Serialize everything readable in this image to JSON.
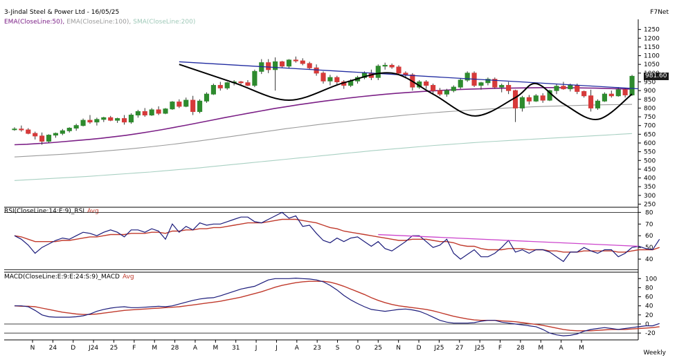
{
  "header": {
    "title": "3-Jindal Steel & Power Ltd - 16/05/25",
    "brand": "F7Net",
    "frequency": "Weekly",
    "overlays": [
      {
        "label": "EMA(CloseLine:50),",
        "color": "#7b1f86"
      },
      {
        "label": "EMA(CloseLine:100),",
        "color": "#9a9a9a"
      },
      {
        "label": "SMA(CloseLine:200)",
        "color": "#9fc9b8"
      }
    ]
  },
  "colors": {
    "up": "#2e8b2e",
    "down": "#d63a3a",
    "ema50": "#7b1f86",
    "ema100": "#9a9a9a",
    "sma200": "#a8d0c2",
    "trend": "#1f2aa0",
    "rsi": "#1a1a7a",
    "rsi_avg": "#c0392b",
    "rsi_trend": "#cc44cc",
    "macd": "#1a1a7a",
    "macd_signal": "#c0392b",
    "pattern": "#000000"
  },
  "price_badge": "981.60",
  "x_axis": {
    "labels": [
      "N",
      "24",
      "D",
      "J24",
      "25",
      "F",
      "M",
      "28",
      "A",
      "M",
      "31",
      "J",
      "J",
      "A",
      "23",
      "S",
      "O",
      "25",
      "N",
      "D",
      "J25",
      "27",
      "J25",
      "F",
      "28",
      "M",
      "A",
      "M"
    ]
  },
  "chart_data": [
    {
      "type": "candlestick",
      "title": "3-Jindal Steel & Power Ltd - 16/05/25",
      "ylim": [
        240,
        1300
      ],
      "yticks": [
        250,
        300,
        350,
        400,
        450,
        500,
        550,
        600,
        650,
        700,
        750,
        800,
        850,
        900,
        950,
        1000,
        1050,
        1100,
        1150,
        1200,
        1250
      ],
      "last_price": 981.6,
      "candles": [
        [
          680,
          690,
          670,
          680
        ],
        [
          680,
          700,
          665,
          675
        ],
        [
          675,
          685,
          650,
          655
        ],
        [
          655,
          665,
          620,
          640
        ],
        [
          640,
          660,
          590,
          610
        ],
        [
          610,
          650,
          600,
          645
        ],
        [
          645,
          660,
          630,
          655
        ],
        [
          655,
          680,
          645,
          670
        ],
        [
          670,
          690,
          660,
          685
        ],
        [
          685,
          710,
          670,
          700
        ],
        [
          700,
          740,
          695,
          730
        ],
        [
          730,
          760,
          710,
          720
        ],
        [
          720,
          745,
          700,
          735
        ],
        [
          735,
          750,
          720,
          745
        ],
        [
          745,
          755,
          725,
          730
        ],
        [
          730,
          745,
          715,
          740
        ],
        [
          740,
          760,
          705,
          720
        ],
        [
          720,
          770,
          710,
          760
        ],
        [
          760,
          790,
          745,
          780
        ],
        [
          780,
          800,
          750,
          760
        ],
        [
          760,
          800,
          755,
          790
        ],
        [
          790,
          810,
          760,
          770
        ],
        [
          770,
          800,
          765,
          795
        ],
        [
          795,
          840,
          790,
          835
        ],
        [
          835,
          850,
          800,
          810
        ],
        [
          810,
          860,
          805,
          845
        ],
        [
          845,
          870,
          760,
          780
        ],
        [
          780,
          850,
          770,
          840
        ],
        [
          840,
          890,
          830,
          880
        ],
        [
          880,
          940,
          875,
          930
        ],
        [
          930,
          950,
          900,
          915
        ],
        [
          915,
          950,
          905,
          945
        ],
        [
          945,
          960,
          930,
          950
        ],
        [
          950,
          955,
          935,
          945
        ],
        [
          945,
          960,
          925,
          930
        ],
        [
          930,
          1020,
          920,
          1010
        ],
        [
          1010,
          1080,
          995,
          1060
        ],
        [
          1060,
          1080,
          1000,
          1020
        ],
        [
          1020,
          1090,
          900,
          1065
        ],
        [
          1065,
          1070,
          1030,
          1040
        ],
        [
          1040,
          1080,
          1025,
          1075
        ],
        [
          1075,
          1095,
          1060,
          1070
        ],
        [
          1070,
          1085,
          1045,
          1055
        ],
        [
          1055,
          1065,
          1020,
          1030
        ],
        [
          1030,
          1050,
          985,
          1000
        ],
        [
          1000,
          1010,
          940,
          955
        ],
        [
          955,
          990,
          930,
          975
        ],
        [
          975,
          985,
          935,
          950
        ],
        [
          950,
          960,
          910,
          930
        ],
        [
          930,
          965,
          920,
          955
        ],
        [
          955,
          985,
          940,
          975
        ],
        [
          975,
          1010,
          965,
          1000
        ],
        [
          1000,
          1020,
          960,
          975
        ],
        [
          975,
          1050,
          960,
          1040
        ],
        [
          1040,
          1060,
          1020,
          1045
        ],
        [
          1045,
          1055,
          1025,
          1035
        ],
        [
          1035,
          1045,
          990,
          1000
        ],
        [
          1000,
          1010,
          970,
          990
        ],
        [
          990,
          1000,
          900,
          920
        ],
        [
          920,
          960,
          910,
          950
        ],
        [
          950,
          960,
          910,
          930
        ],
        [
          930,
          940,
          880,
          900
        ],
        [
          900,
          915,
          870,
          880
        ],
        [
          880,
          910,
          865,
          900
        ],
        [
          900,
          930,
          890,
          920
        ],
        [
          920,
          970,
          910,
          960
        ],
        [
          960,
          1010,
          950,
          1000
        ],
        [
          1000,
          1010,
          920,
          930
        ],
        [
          930,
          950,
          905,
          945
        ],
        [
          945,
          975,
          930,
          965
        ],
        [
          965,
          975,
          910,
          920
        ],
        [
          920,
          940,
          890,
          930
        ],
        [
          930,
          950,
          880,
          900
        ],
        [
          900,
          905,
          720,
          800
        ],
        [
          800,
          870,
          780,
          860
        ],
        [
          860,
          875,
          820,
          840
        ],
        [
          840,
          880,
          835,
          870
        ],
        [
          870,
          885,
          830,
          845
        ],
        [
          845,
          905,
          840,
          900
        ],
        [
          900,
          940,
          880,
          925
        ],
        [
          925,
          950,
          905,
          910
        ],
        [
          910,
          940,
          895,
          930
        ],
        [
          930,
          940,
          880,
          895
        ],
        [
          895,
          900,
          860,
          870
        ],
        [
          870,
          905,
          780,
          800
        ],
        [
          800,
          850,
          790,
          840
        ],
        [
          840,
          890,
          835,
          880
        ],
        [
          880,
          900,
          860,
          870
        ],
        [
          870,
          920,
          865,
          905
        ],
        [
          905,
          915,
          860,
          875
        ],
        [
          875,
          990,
          870,
          982
        ]
      ],
      "series": [
        {
          "name": "EMA(CloseLine:50)",
          "values": [
            590,
            593,
            597,
            602,
            608,
            614,
            620,
            627,
            635,
            644,
            654,
            665,
            677,
            690,
            703,
            717,
            731,
            745,
            758,
            771,
            784,
            797,
            808,
            819,
            829,
            839,
            848,
            857,
            865,
            872,
            879,
            885,
            890,
            895,
            899,
            903,
            906,
            909,
            911,
            913,
            914,
            915,
            916,
            917,
            917,
            916,
            915,
            914,
            912,
            910,
            908
          ]
        },
        {
          "name": "EMA(CloseLine:100)",
          "values": [
            520,
            524,
            528,
            532,
            536,
            541,
            546,
            552,
            558,
            564,
            571,
            578,
            586,
            594,
            603,
            612,
            622,
            632,
            642,
            652,
            662,
            672,
            682,
            691,
            700,
            709,
            717,
            725,
            733,
            741,
            748,
            755,
            762,
            768,
            774,
            779,
            784,
            789,
            793,
            797,
            801,
            804,
            807,
            810,
            812,
            814,
            816,
            818,
            819,
            820,
            821
          ]
        },
        {
          "name": "SMA(CloseLine:200)",
          "values": [
            385,
            389,
            393,
            397,
            401,
            405,
            409,
            414,
            419,
            424,
            429,
            434,
            440,
            446,
            452,
            458,
            465,
            472,
            479,
            486,
            493,
            500,
            507,
            514,
            521,
            528,
            535,
            542,
            549,
            556,
            562,
            568,
            574,
            580,
            586,
            591,
            596,
            601,
            606,
            610,
            614,
            618,
            622,
            626,
            630,
            634,
            638,
            642,
            646,
            650,
            654
          ]
        }
      ],
      "trendline": [
        [
          24,
          1065
        ],
        [
          90,
          917
        ]
      ],
      "pattern_points": [
        [
          24,
          1050
        ],
        [
          32,
          945
        ],
        [
          40,
          845
        ],
        [
          48,
          945
        ],
        [
          55,
          1000
        ],
        [
          61,
          880
        ],
        [
          67,
          755
        ],
        [
          73,
          860
        ],
        [
          76,
          940
        ],
        [
          80,
          825
        ],
        [
          85,
          735
        ],
        [
          90,
          880
        ]
      ]
    },
    {
      "type": "line",
      "title": "RSI(CloseLine:14:E:9)_RSI Avg",
      "ylim": [
        30,
        82
      ],
      "yticks": [
        40,
        50,
        60,
        70,
        80
      ],
      "series": [
        {
          "name": "RSI(CloseLine:14:E:9)",
          "color": "#1a1a7a",
          "values": [
            60,
            57,
            52,
            45,
            50,
            53,
            56,
            58,
            57,
            60,
            63,
            62,
            60,
            63,
            65,
            63,
            59,
            65,
            65,
            63,
            66,
            64,
            57,
            70,
            63,
            68,
            65,
            71,
            69,
            70,
            70,
            72,
            74,
            76,
            76,
            72,
            71,
            74,
            77,
            80,
            75,
            77,
            68,
            69,
            62,
            56,
            54,
            58,
            55,
            58,
            59,
            55,
            51,
            55,
            49,
            47,
            51,
            55,
            60,
            60,
            55,
            50,
            52,
            57,
            45,
            40,
            44,
            48,
            42,
            42,
            45,
            50,
            56,
            46,
            48,
            45,
            48,
            48,
            46,
            42,
            38,
            46,
            46,
            50,
            47,
            45,
            48,
            48,
            42,
            45,
            50,
            51,
            49,
            48,
            57
          ]
        },
        {
          "name": "RSI Avg",
          "color": "#c0392b",
          "values": [
            60,
            59,
            57,
            55,
            55,
            55,
            55,
            56,
            56,
            57,
            58,
            59,
            59,
            60,
            61,
            61,
            61,
            62,
            62,
            62,
            63,
            63,
            62,
            64,
            64,
            65,
            65,
            66,
            66,
            67,
            67,
            68,
            69,
            70,
            71,
            71,
            71,
            72,
            73,
            74,
            74,
            74,
            73,
            72,
            71,
            69,
            67,
            66,
            64,
            63,
            62,
            61,
            60,
            59,
            58,
            57,
            56,
            56,
            57,
            57,
            57,
            56,
            55,
            55,
            54,
            52,
            51,
            51,
            49,
            48,
            48,
            48,
            49,
            49,
            49,
            48,
            48,
            48,
            47,
            47,
            46,
            46,
            46,
            47,
            47,
            47,
            47,
            47,
            46,
            46,
            47,
            48,
            48,
            48,
            50
          ]
        }
      ],
      "trendline": [
        [
          53,
          61
        ],
        [
          95,
          50.5
        ]
      ]
    },
    {
      "type": "line",
      "title": "MACD(CloseLine:E:9:E:24:S:9)_MACD Avg",
      "ylim": [
        -32,
        108
      ],
      "yticks": [
        -20,
        0,
        20,
        40,
        60,
        80,
        100
      ],
      "hlines": [
        0,
        -20
      ],
      "series": [
        {
          "name": "MACD(CloseLine:E:9:E:24:S:9)",
          "color": "#1a1a7a",
          "values": [
            40,
            40,
            38,
            30,
            20,
            16,
            15,
            15,
            15,
            16,
            18,
            22,
            28,
            32,
            35,
            37,
            38,
            36,
            36,
            37,
            38,
            39,
            38,
            40,
            44,
            48,
            52,
            55,
            57,
            58,
            62,
            67,
            72,
            77,
            80,
            83,
            90,
            97,
            100,
            100,
            100,
            101,
            100,
            99,
            97,
            93,
            85,
            75,
            63,
            53,
            45,
            38,
            32,
            30,
            28,
            30,
            32,
            33,
            31,
            28,
            22,
            15,
            8,
            4,
            2,
            2,
            2,
            3,
            6,
            8,
            8,
            4,
            2,
            0,
            -2,
            -4,
            -6,
            -12,
            -20,
            -24,
            -26,
            -25,
            -22,
            -16,
            -12,
            -10,
            -8,
            -10,
            -12,
            -10,
            -8,
            -6,
            -4,
            -4,
            1
          ]
        },
        {
          "name": "MACD Avg",
          "color": "#c0392b",
          "values": [
            40,
            39,
            39,
            38,
            35,
            32,
            29,
            26,
            24,
            22,
            21,
            21,
            22,
            24,
            26,
            28,
            30,
            31,
            32,
            33,
            34,
            35,
            36,
            37,
            38,
            40,
            42,
            44,
            46,
            48,
            50,
            53,
            56,
            59,
            63,
            67,
            71,
            76,
            81,
            85,
            88,
            91,
            93,
            94,
            94,
            94,
            92,
            88,
            83,
            77,
            71,
            65,
            58,
            52,
            47,
            43,
            40,
            38,
            36,
            34,
            32,
            29,
            25,
            21,
            17,
            14,
            11,
            9,
            8,
            8,
            8,
            7,
            6,
            5,
            3,
            1,
            -1,
            -3,
            -6,
            -9,
            -12,
            -14,
            -15,
            -15,
            -15,
            -14,
            -13,
            -12,
            -12,
            -12,
            -11,
            -10,
            -9,
            -8,
            -6
          ]
        }
      ]
    }
  ]
}
